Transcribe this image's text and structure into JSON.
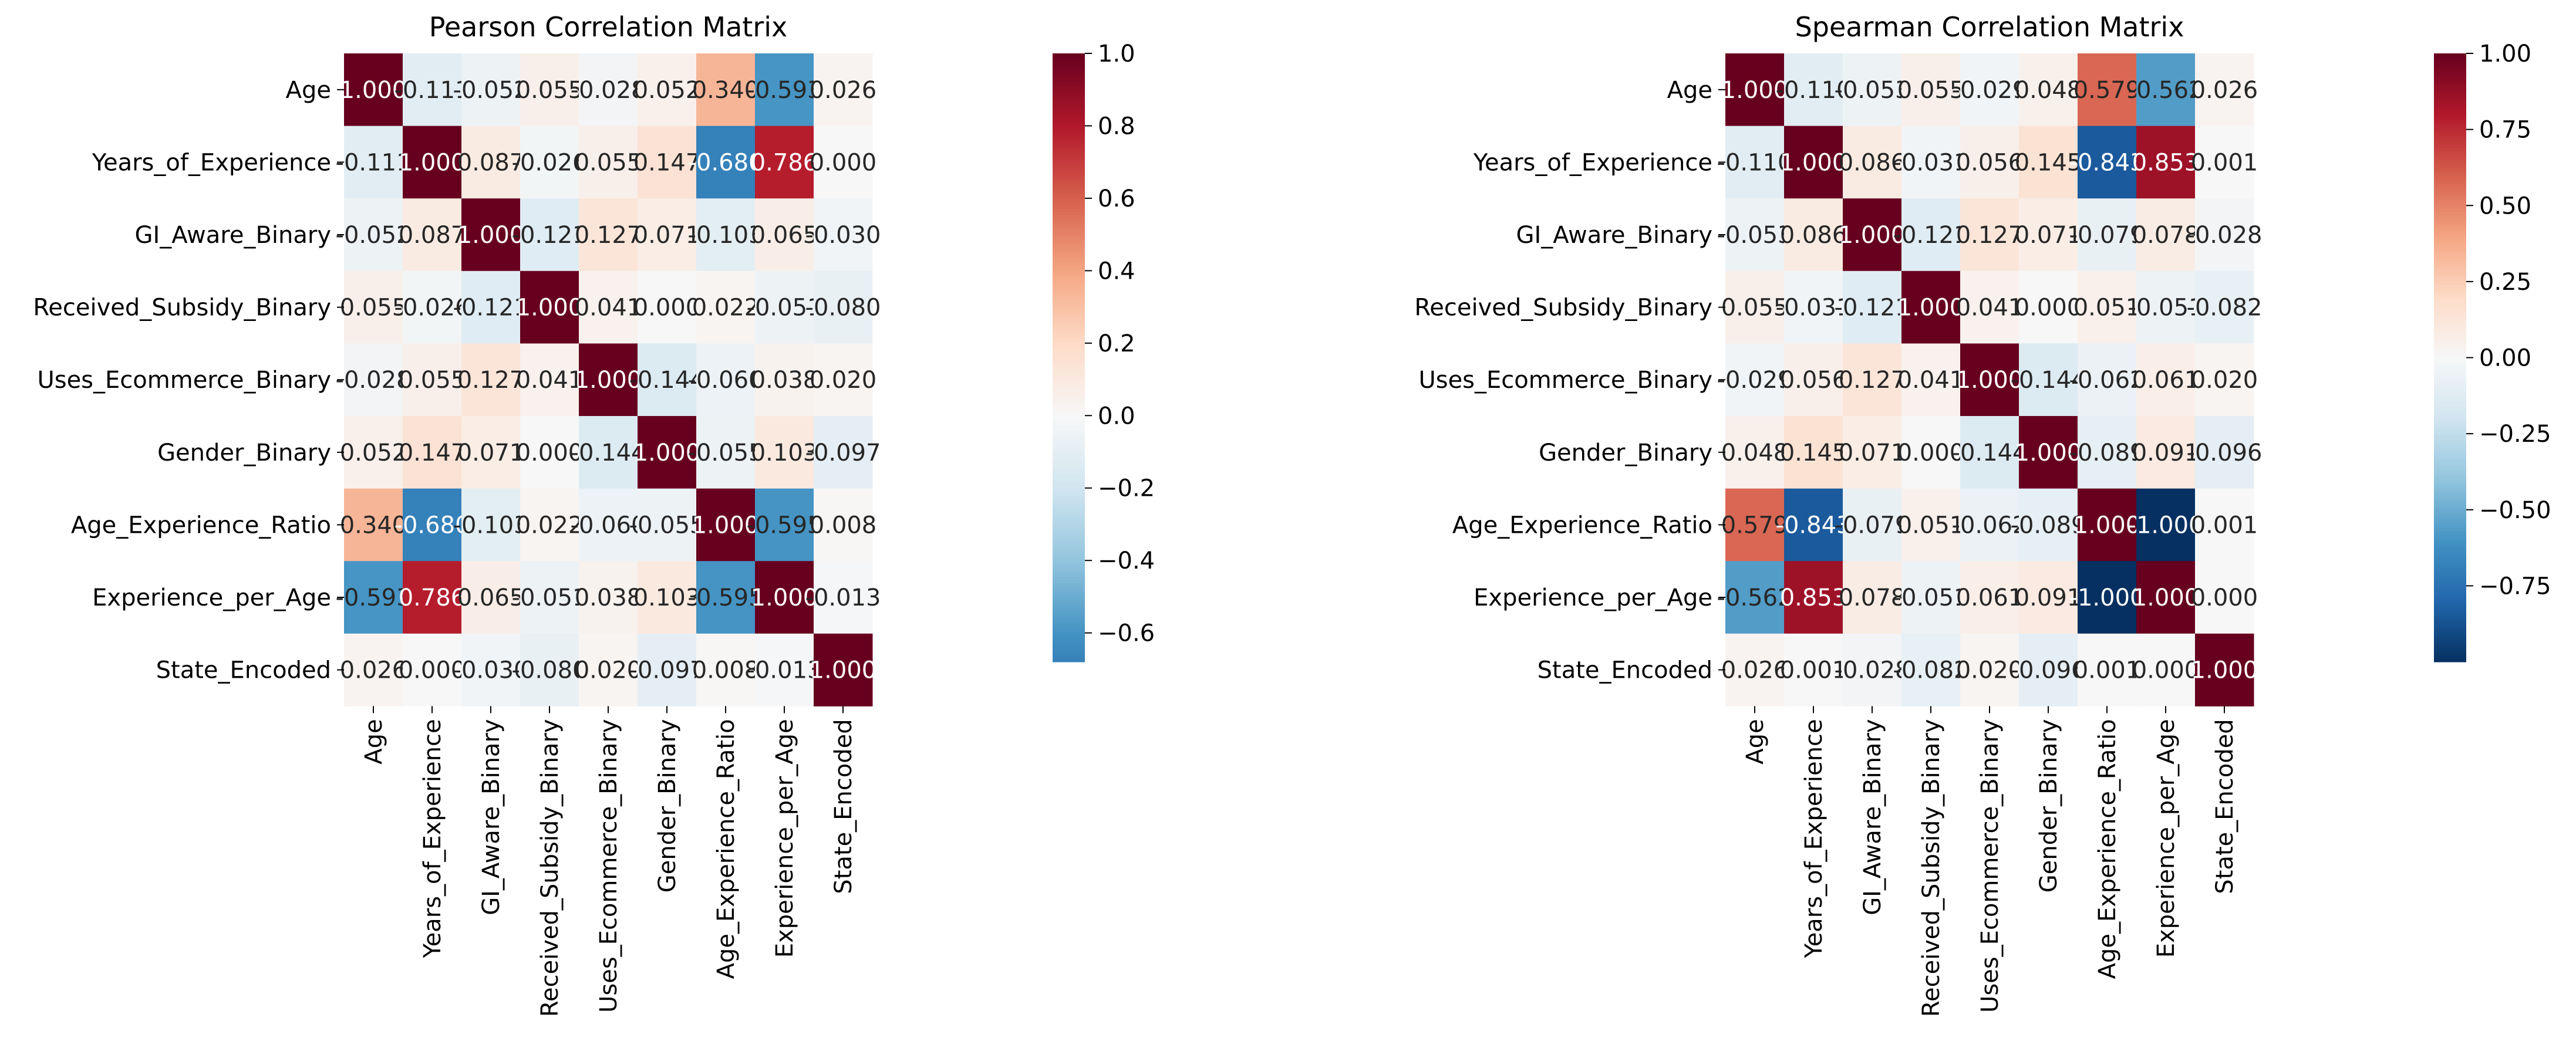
{
  "chart_data": [
    {
      "type": "heatmap",
      "title": "Pearson Correlation Matrix",
      "labels": [
        "Age",
        "Years_of_Experience",
        "GI_Aware_Binary",
        "Received_Subsidy_Binary",
        "Uses_Ecommerce_Binary",
        "Gender_Binary",
        "Age_Experience_Ratio",
        "Experience_per_Age",
        "State_Encoded"
      ],
      "matrix": [
        [
          1.0,
          -0.111,
          -0.052,
          0.055,
          -0.028,
          0.052,
          0.34,
          -0.593,
          0.026
        ],
        [
          -0.111,
          1.0,
          0.087,
          -0.026,
          0.055,
          0.147,
          -0.68,
          0.786,
          0.0
        ],
        [
          -0.052,
          0.087,
          1.0,
          -0.121,
          0.127,
          0.071,
          -0.103,
          0.065,
          -0.03
        ],
        [
          0.055,
          -0.026,
          -0.121,
          1.0,
          0.041,
          0.0,
          0.022,
          -0.051,
          -0.08
        ],
        [
          -0.028,
          0.055,
          0.127,
          0.041,
          1.0,
          -0.144,
          -0.06,
          0.038,
          0.02
        ],
        [
          0.052,
          0.147,
          0.071,
          0.0,
          -0.144,
          1.0,
          -0.055,
          0.103,
          -0.097
        ],
        [
          0.34,
          -0.68,
          -0.103,
          0.022,
          -0.06,
          -0.055,
          1.0,
          -0.595,
          0.008
        ],
        [
          -0.593,
          0.786,
          0.065,
          -0.051,
          0.038,
          0.103,
          -0.595,
          1.0,
          -0.013
        ],
        [
          0.026,
          0.0,
          -0.03,
          -0.08,
          0.02,
          -0.097,
          0.008,
          -0.013,
          1.0
        ]
      ],
      "colorscale": "RdBu_r",
      "color_center": 0,
      "colorbar_range": [
        -0.68,
        1.0
      ],
      "colorbar_ticks": [
        "−0.6",
        "−0.4",
        "−0.2",
        "0.0",
        "0.2",
        "0.4",
        "0.6",
        "0.8",
        "1.0"
      ]
    },
    {
      "type": "heatmap",
      "title": "Spearman Correlation Matrix",
      "labels": [
        "Age",
        "Years_of_Experience",
        "GI_Aware_Binary",
        "Received_Subsidy_Binary",
        "Uses_Ecommerce_Binary",
        "Gender_Binary",
        "Age_Experience_Ratio",
        "Experience_per_Age",
        "State_Encoded"
      ],
      "matrix": [
        [
          1.0,
          -0.11,
          -0.053,
          0.055,
          -0.029,
          0.048,
          0.579,
          -0.562,
          0.026
        ],
        [
          -0.11,
          1.0,
          0.086,
          -0.031,
          0.056,
          0.145,
          -0.843,
          0.853,
          0.001
        ],
        [
          -0.053,
          0.086,
          1.0,
          -0.121,
          0.127,
          0.071,
          -0.079,
          0.078,
          -0.028
        ],
        [
          0.055,
          -0.031,
          -0.121,
          1.0,
          0.041,
          0.0,
          0.051,
          -0.051,
          -0.082
        ],
        [
          -0.029,
          0.056,
          0.127,
          0.041,
          1.0,
          -0.144,
          -0.062,
          0.061,
          0.02
        ],
        [
          0.048,
          0.145,
          0.071,
          0.0,
          -0.144,
          1.0,
          -0.089,
          0.091,
          -0.096
        ],
        [
          0.579,
          -0.843,
          -0.079,
          0.051,
          -0.062,
          -0.089,
          1.0,
          -1.0,
          0.001
        ],
        [
          -0.562,
          0.853,
          0.078,
          -0.051,
          0.061,
          0.091,
          -1.0,
          1.0,
          0.0
        ],
        [
          0.026,
          0.001,
          -0.028,
          -0.082,
          0.02,
          -0.096,
          0.001,
          0.0,
          1.0
        ]
      ],
      "colorscale": "RdBu_r",
      "color_center": 0,
      "colorbar_range": [
        -1.0,
        1.0
      ],
      "colorbar_ticks": [
        "−0.75",
        "−0.50",
        "−0.25",
        "0.00",
        "0.25",
        "0.50",
        "0.75",
        "1.00"
      ]
    }
  ]
}
